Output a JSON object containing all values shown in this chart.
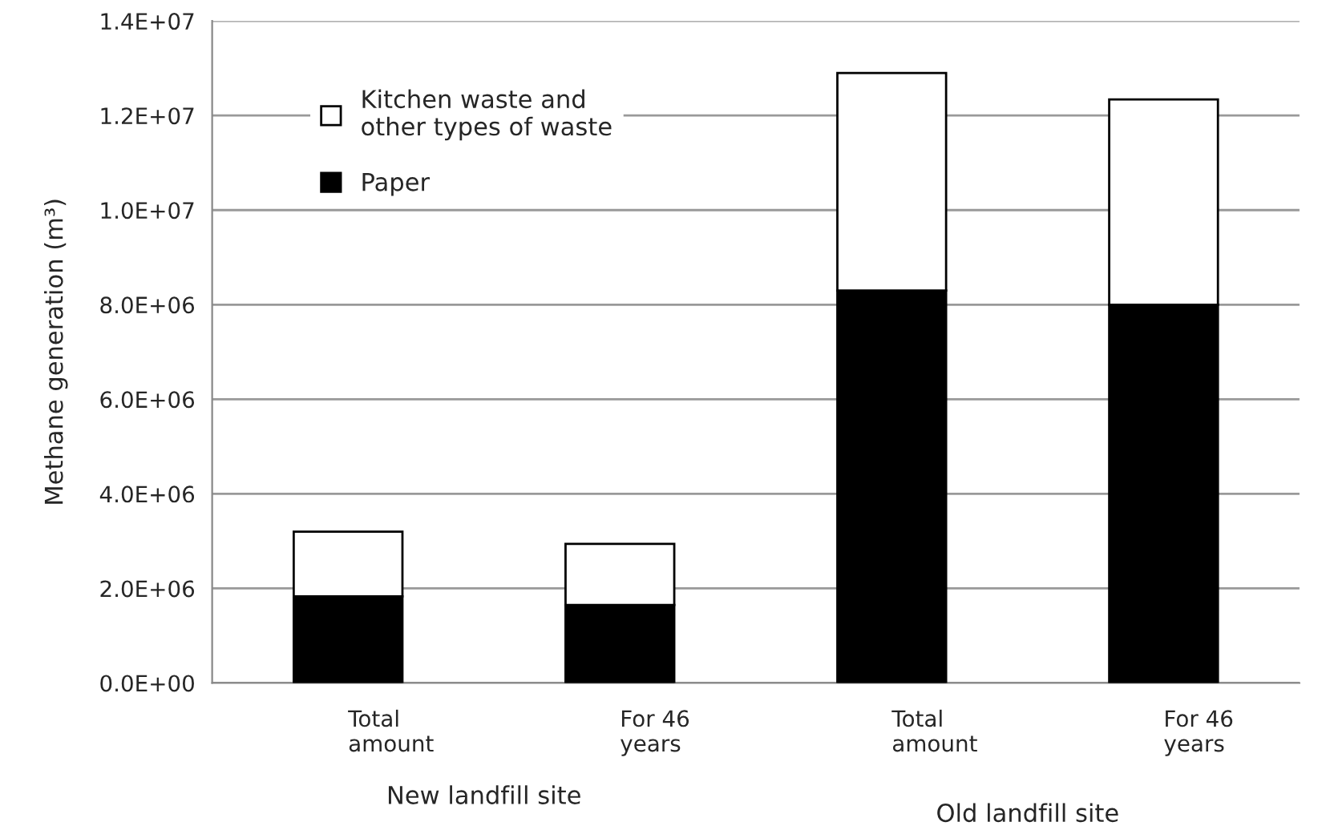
{
  "chart_data": {
    "type": "bar",
    "stacked": true,
    "ylabel": "Methane generation (m³)",
    "categories": [
      "Total\namount",
      "For 46\nyears",
      "Total\namount",
      "For 46\nyears"
    ],
    "series": [
      {
        "name": "Paper",
        "color": "#000000",
        "values": [
          1830000,
          1650000,
          8300000,
          8000000
        ]
      },
      {
        "name": "Kitchen waste and\nother types of waste",
        "color": "#ffffff",
        "values": [
          1370000,
          1290000,
          4600000,
          4340000
        ]
      }
    ],
    "ylim": [
      0,
      14000000
    ],
    "yticks": [
      {
        "value": 0,
        "label": "0.0E+00"
      },
      {
        "value": 2000000,
        "label": "2.0E+06"
      },
      {
        "value": 4000000,
        "label": "4.0E+06"
      },
      {
        "value": 6000000,
        "label": "6.0E+06"
      },
      {
        "value": 8000000,
        "label": "8.0E+06"
      },
      {
        "value": 10000000,
        "label": "1.0E+07"
      },
      {
        "value": 12000000,
        "label": "1.2E+07"
      },
      {
        "value": 14000000,
        "label": "1.4E+07"
      }
    ],
    "grid": "y",
    "legend": "top left",
    "annotations": [
      "New landfill site",
      "Old landfill site"
    ]
  }
}
